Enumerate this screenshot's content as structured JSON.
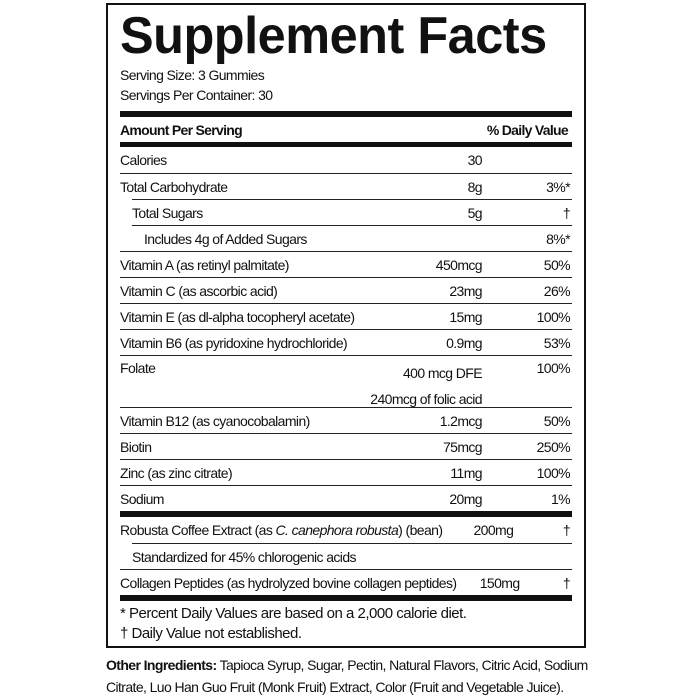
{
  "title": "Supplement Facts",
  "serving_size": "Serving Size: 3 Gummies",
  "servings_per_container": "Servings Per Container: 30",
  "header": {
    "amount": "Amount Per Serving",
    "dv": "% Daily Value"
  },
  "rows": [
    {
      "name": "Calories",
      "amount": "30",
      "dv": "",
      "indent": 0
    },
    {
      "name": "Total Carbohydrate",
      "amount": "8g",
      "dv": "3%*",
      "indent": 0
    },
    {
      "name": "Total Sugars",
      "amount": "5g",
      "dv": "†",
      "indent": 1
    },
    {
      "name": "Includes 4g of Added Sugars",
      "amount": "",
      "dv": "8%*",
      "indent": 2
    },
    {
      "name": "Vitamin A (as retinyl palmitate)",
      "amount": "450mcg",
      "dv": "50%",
      "indent": 0
    },
    {
      "name": "Vitamin C (as ascorbic acid)",
      "amount": "23mg",
      "dv": "26%",
      "indent": 0
    },
    {
      "name": "Vitamin E (as dl-alpha tocopheryl acetate)",
      "amount": "15mg",
      "dv": "100%",
      "indent": 0
    },
    {
      "name": "Vitamin B6 (as pyridoxine hydrochloride)",
      "amount": "0.9mg",
      "dv": "53%",
      "indent": 0
    },
    {
      "name": "Folate",
      "amount": "400 mcg DFE",
      "amount2": "240mcg of folic acid",
      "dv": "100%",
      "indent": 0
    },
    {
      "name": "Vitamin B12 (as cyanocobalamin)",
      "amount": "1.2mcg",
      "dv": "50%",
      "indent": 0
    },
    {
      "name": "Biotin",
      "amount": "75mcg",
      "dv": "250%",
      "indent": 0
    },
    {
      "name": "Zinc (as zinc citrate)",
      "amount": "11mg",
      "dv": "100%",
      "indent": 0
    },
    {
      "name": "Sodium",
      "amount": "20mg",
      "dv": "1%",
      "indent": 0
    }
  ],
  "rows2": [
    {
      "name": "Robusta Coffee Extract (as ",
      "italic": "C. canephora robusta",
      "name_end": ") (bean)",
      "amount": "200mg",
      "dv": "†",
      "indent": 0
    },
    {
      "name": "Standardized for 45% chlorogenic acids",
      "amount": "",
      "dv": "",
      "indent": 1
    },
    {
      "name": "Collagen Peptides (as hydrolyzed bovine collagen peptides)",
      "amount": "150mg",
      "dv": "†",
      "indent": 0
    }
  ],
  "footnotes": [
    "* Percent Daily Values are based on a 2,000 calorie diet.",
    "† Daily Value not established."
  ],
  "other_ingredients": {
    "label": "Other Ingredients:",
    "text": " Tapioca Syrup, Sugar, Pectin, Natural Flavors, Citric Acid, Sodium Citrate, Luo Han Guo Fruit (Monk Fruit) Extract, Color (Fruit and Vegetable Juice)."
  }
}
